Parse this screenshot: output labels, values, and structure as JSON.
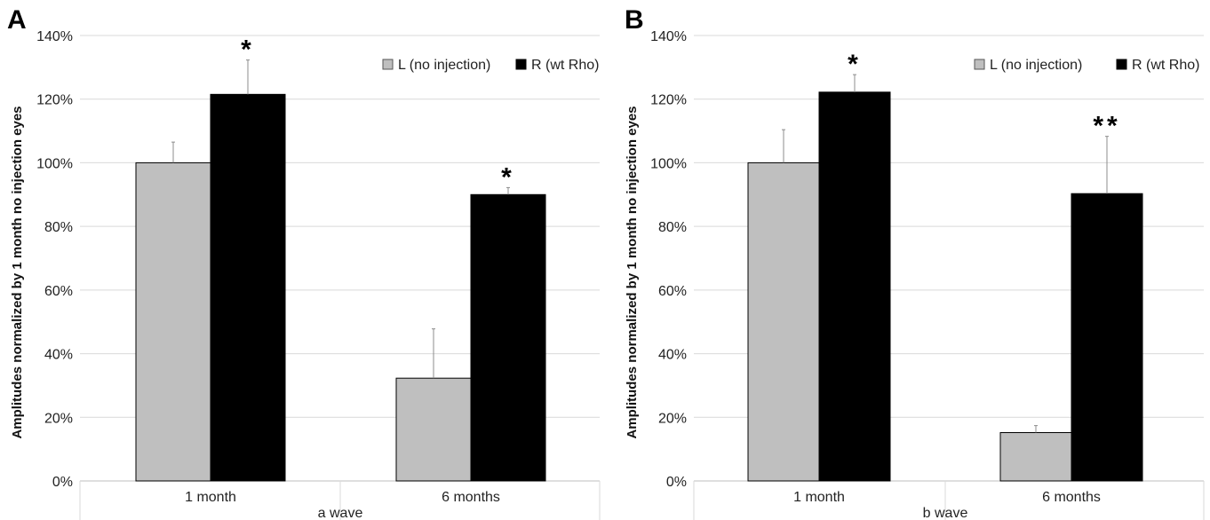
{
  "chart_data": [
    {
      "type": "bar",
      "panel_label": "A",
      "categories": [
        "1 month",
        "6 months"
      ],
      "group_label": "a wave",
      "ylabel": "Amplitudes normalized by 1 month no injection eyes",
      "ylim": [
        0,
        140
      ],
      "y_ticks": [
        0,
        20,
        40,
        60,
        80,
        100,
        120,
        140
      ],
      "y_tick_labels": [
        "0%",
        "20%",
        "40%",
        "60%",
        "80%",
        "100%",
        "120%",
        "140%"
      ],
      "grid": true,
      "legend_position": "top-right",
      "series": [
        {
          "name": "L (no injection)",
          "color": "#bfbfbf",
          "values": [
            100,
            32.3
          ],
          "errors": [
            6.5,
            15.5
          ]
        },
        {
          "name": "R (wt Rho)",
          "color": "#000000",
          "values": [
            121.5,
            90
          ],
          "errors": [
            10.8,
            2.2
          ]
        }
      ],
      "significance": [
        {
          "series": "R (wt Rho)",
          "category": "1 month",
          "text": "*"
        },
        {
          "series": "R (wt Rho)",
          "category": "6 months",
          "text": "*"
        }
      ]
    },
    {
      "type": "bar",
      "panel_label": "B",
      "categories": [
        "1 month",
        "6 months"
      ],
      "group_label": "b wave",
      "ylabel": "Amplitudes normalized by 1 month no injection eyes",
      "ylim": [
        0,
        140
      ],
      "y_ticks": [
        0,
        20,
        40,
        60,
        80,
        100,
        120,
        140
      ],
      "y_tick_labels": [
        "0%",
        "20%",
        "40%",
        "60%",
        "80%",
        "100%",
        "120%",
        "140%"
      ],
      "grid": true,
      "legend_position": "top-right",
      "series": [
        {
          "name": "L (no injection)",
          "color": "#bfbfbf",
          "values": [
            100,
            15.2
          ],
          "errors": [
            10.4,
            2.2
          ]
        },
        {
          "name": "R (wt Rho)",
          "color": "#000000",
          "values": [
            122.2,
            90.3
          ],
          "errors": [
            5.5,
            18.0
          ]
        }
      ],
      "significance": [
        {
          "series": "R (wt Rho)",
          "category": "1 month",
          "text": "*"
        },
        {
          "series": "R (wt Rho)",
          "category": "6 months",
          "text": "**"
        }
      ]
    }
  ]
}
